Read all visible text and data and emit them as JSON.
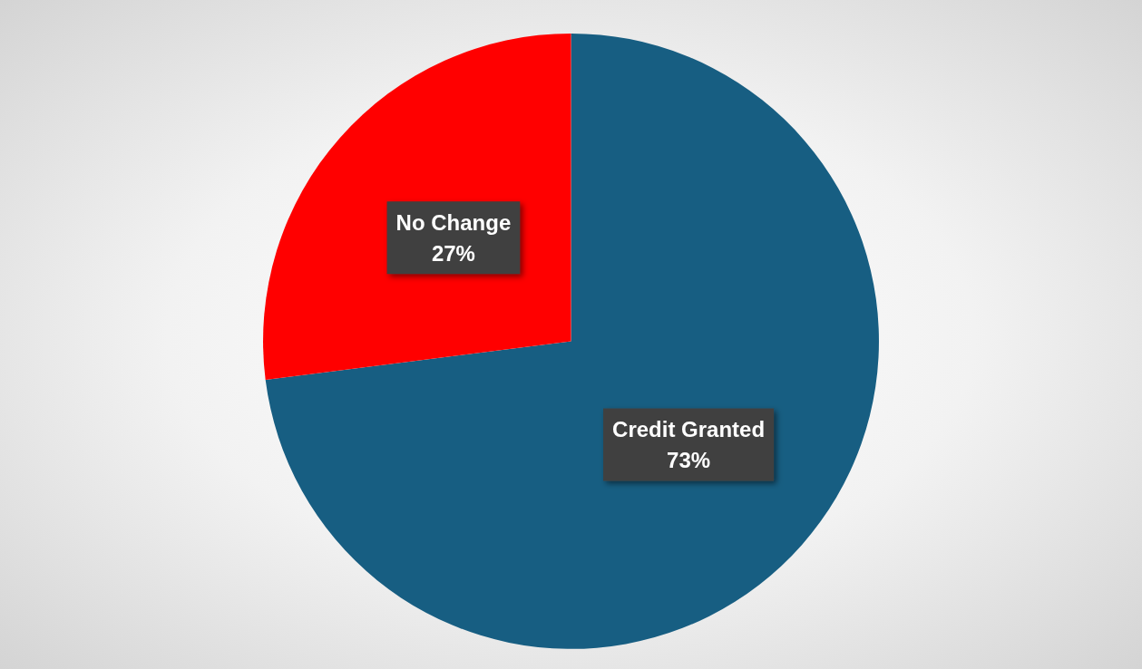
{
  "chart_data": {
    "type": "pie",
    "categories": [
      "Credit Granted",
      "No Change"
    ],
    "values": [
      73,
      27
    ],
    "value_labels": [
      "73%",
      "27%"
    ],
    "colors": [
      "#175e82",
      "#ff0000"
    ],
    "legend": false
  }
}
